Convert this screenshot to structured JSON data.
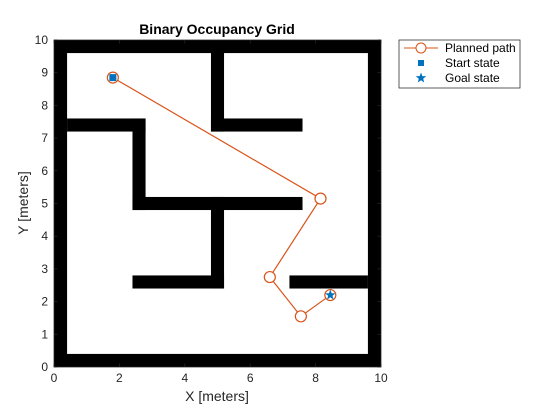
{
  "chart_data": {
    "type": "scatter",
    "title": "Binary Occupancy Grid",
    "xlabel": "X [meters]",
    "ylabel": "Y [meters]",
    "xlim": [
      0,
      10
    ],
    "ylim": [
      0,
      10
    ],
    "xticks": [
      "0",
      "2",
      "4",
      "6",
      "8",
      "10"
    ],
    "yticks": [
      "0",
      "1",
      "2",
      "3",
      "4",
      "5",
      "6",
      "7",
      "8",
      "9",
      "10"
    ],
    "grid": false,
    "legend_position": "outside top-right",
    "obstacle_color": "#000000",
    "obstacles": [
      {
        "x0": 0,
        "y0": 0,
        "x1": 10,
        "y1": 0.4
      },
      {
        "x0": 0,
        "y0": 9.6,
        "x1": 10,
        "y1": 10
      },
      {
        "x0": 0,
        "y0": 0,
        "x1": 0.4,
        "y1": 10
      },
      {
        "x0": 9.6,
        "y0": 0,
        "x1": 10,
        "y1": 10
      },
      {
        "x0": 4.8,
        "y0": 7.2,
        "x1": 5.2,
        "y1": 10
      },
      {
        "x0": 4.8,
        "y0": 7.2,
        "x1": 7.6,
        "y1": 7.6
      },
      {
        "x0": 0.4,
        "y0": 7.2,
        "x1": 2.8,
        "y1": 7.6
      },
      {
        "x0": 2.4,
        "y0": 4.8,
        "x1": 2.8,
        "y1": 7.6
      },
      {
        "x0": 2.4,
        "y0": 4.8,
        "x1": 7.6,
        "y1": 5.2
      },
      {
        "x0": 4.8,
        "y0": 2.4,
        "x1": 5.2,
        "y1": 5.2
      },
      {
        "x0": 2.4,
        "y0": 2.4,
        "x1": 5.2,
        "y1": 2.8
      },
      {
        "x0": 7.2,
        "y0": 2.4,
        "x1": 9.6,
        "y1": 2.8
      }
    ],
    "series": [
      {
        "name": "Planned path",
        "color": "#D95319",
        "marker": "circle",
        "points": [
          {
            "x": 1.8,
            "y": 8.85
          },
          {
            "x": 8.15,
            "y": 5.15
          },
          {
            "x": 6.6,
            "y": 2.75
          },
          {
            "x": 7.55,
            "y": 1.55
          },
          {
            "x": 8.45,
            "y": 2.2
          }
        ]
      },
      {
        "name": "Start state",
        "color": "#0072BD",
        "marker": "square",
        "points": [
          {
            "x": 1.8,
            "y": 8.85
          }
        ]
      },
      {
        "name": "Goal state",
        "color": "#0072BD",
        "marker": "star",
        "points": [
          {
            "x": 8.45,
            "y": 2.2
          }
        ]
      }
    ]
  }
}
